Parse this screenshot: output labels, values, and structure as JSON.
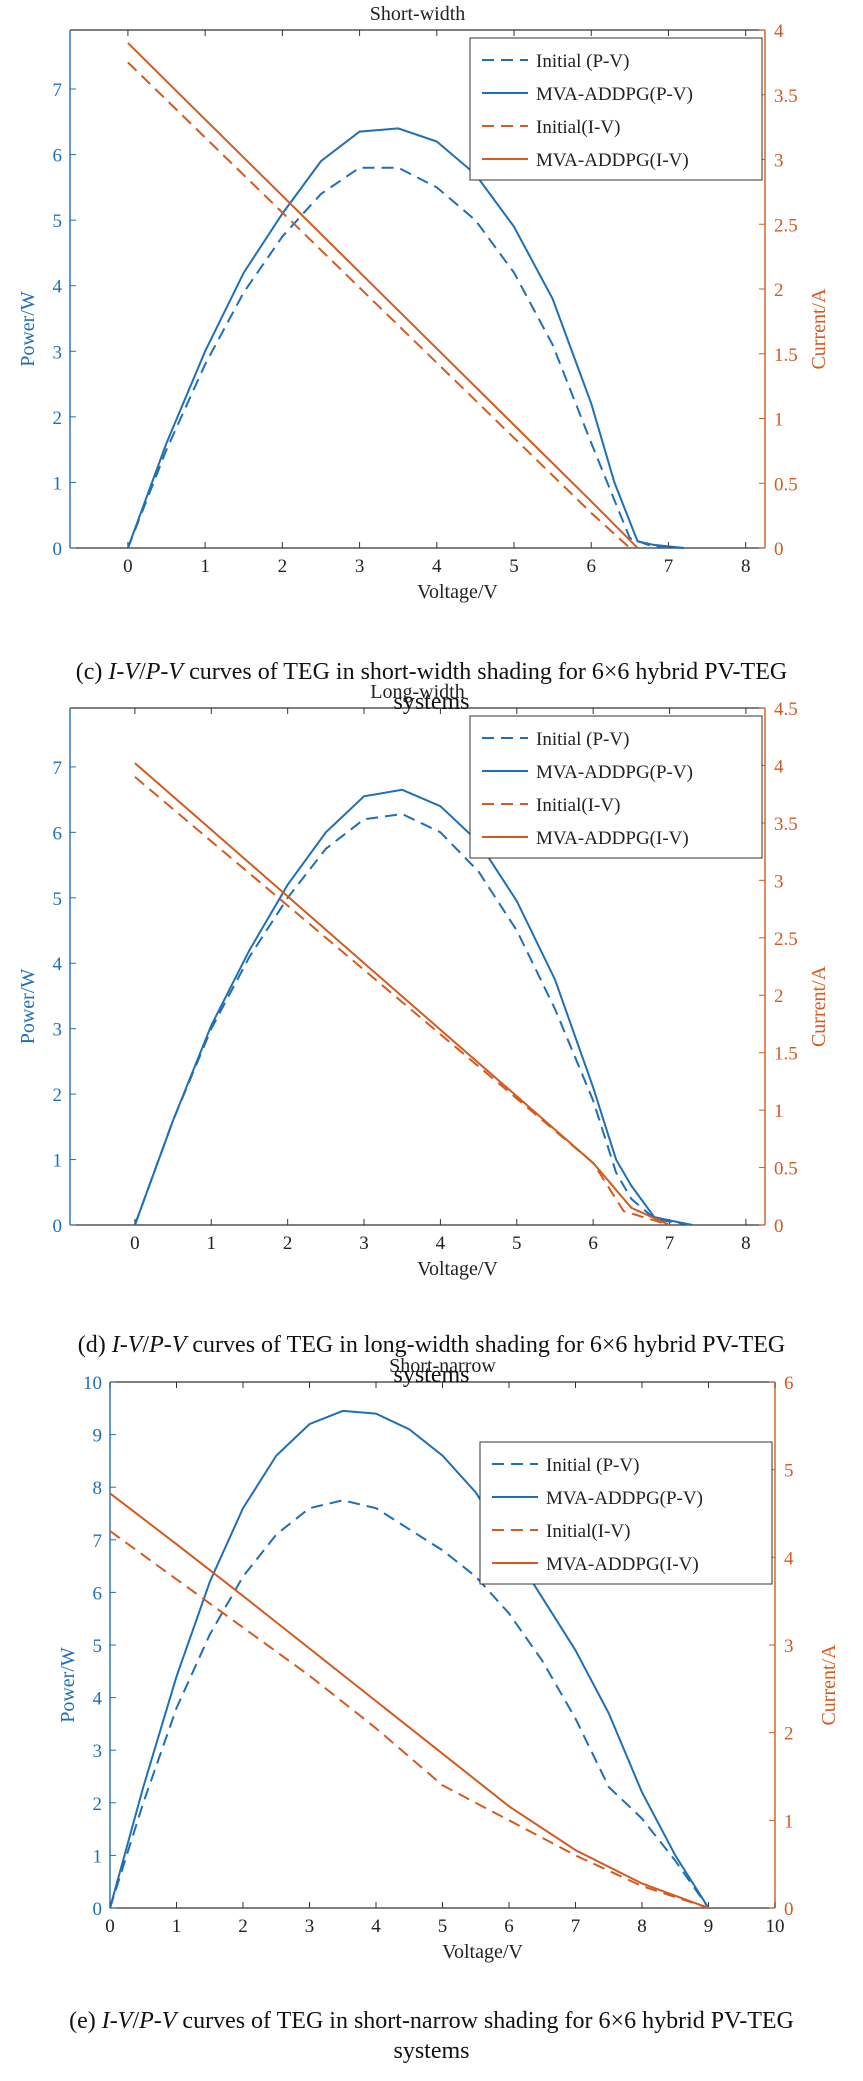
{
  "chart_data": [
    {
      "id": "c",
      "type": "line",
      "title": "Short-width",
      "xlabel": "Voltage/V",
      "ylabel_left": "Power/W",
      "ylabel_right": "Current/A",
      "xlim": [
        -0.75,
        8.25
      ],
      "x_ticks": [
        0,
        1,
        2,
        3,
        4,
        5,
        6,
        7,
        8
      ],
      "ylim_left": [
        0,
        7.9
      ],
      "y_ticks_left": [
        0,
        1,
        2,
        3,
        4,
        5,
        6,
        7
      ],
      "ylim_right": [
        0,
        4
      ],
      "y_ticks_right": [
        0,
        0.5,
        1,
        1.5,
        2,
        2.5,
        3,
        3.5,
        4
      ],
      "legend_position": "top-right",
      "series": [
        {
          "name": "Initial (P-V)",
          "axis": "left",
          "color": "#1f6fb5",
          "dash": true,
          "x": [
            0,
            0.5,
            1,
            1.5,
            2,
            2.5,
            3,
            3.5,
            4,
            4.5,
            5,
            5.5,
            6,
            6.5,
            6.8,
            7.2
          ],
          "y": [
            0,
            1.5,
            2.8,
            3.9,
            4.75,
            5.4,
            5.8,
            5.8,
            5.5,
            5.0,
            4.2,
            3.1,
            1.6,
            0.15,
            0.02,
            0
          ]
        },
        {
          "name": "MVA-ADDPG(P-V)",
          "axis": "left",
          "color": "#1f6fb5",
          "dash": false,
          "x": [
            0,
            0.5,
            1,
            1.5,
            2,
            2.5,
            3,
            3.5,
            4,
            4.5,
            5,
            5.5,
            6,
            6.3,
            6.6,
            6.8,
            7.2
          ],
          "y": [
            0,
            1.6,
            3.0,
            4.2,
            5.1,
            5.9,
            6.35,
            6.4,
            6.2,
            5.7,
            4.9,
            3.8,
            2.2,
            1.0,
            0.1,
            0.05,
            0
          ]
        },
        {
          "name": "Initial(I-V)",
          "axis": "right",
          "color": "#d45a1f",
          "dash": true,
          "x": [
            0,
            1,
            2,
            3,
            4,
            5,
            6,
            6.5
          ],
          "y": [
            3.75,
            3.17,
            2.59,
            2.01,
            1.43,
            0.85,
            0.27,
            0
          ]
        },
        {
          "name": "MVA-ADDPG(I-V)",
          "axis": "right",
          "color": "#d45a1f",
          "dash": false,
          "x": [
            0,
            1,
            2,
            3,
            4,
            5,
            6,
            6.6
          ],
          "y": [
            3.9,
            3.31,
            2.72,
            2.13,
            1.54,
            0.95,
            0.36,
            0
          ]
        }
      ]
    },
    {
      "id": "d",
      "type": "line",
      "title": "Long-width",
      "xlabel": "Voltage/V",
      "ylabel_left": "Power/W",
      "ylabel_right": "Current/A",
      "xlim": [
        -0.85,
        8.25
      ],
      "x_ticks": [
        0,
        1,
        2,
        3,
        4,
        5,
        6,
        7,
        8
      ],
      "ylim_left": [
        0,
        7.9
      ],
      "y_ticks_left": [
        0,
        1,
        2,
        3,
        4,
        5,
        6,
        7
      ],
      "ylim_right": [
        0,
        4.5
      ],
      "y_ticks_right": [
        0,
        0.5,
        1,
        1.5,
        2,
        2.5,
        3,
        3.5,
        4,
        4.5
      ],
      "legend_position": "top-right",
      "series": [
        {
          "name": "Initial (P-V)",
          "axis": "left",
          "color": "#1f6fb5",
          "dash": true,
          "x": [
            0,
            0.5,
            1,
            1.5,
            2,
            2.5,
            3,
            3.5,
            4,
            4.5,
            5,
            5.5,
            6,
            6.3,
            6.5,
            6.8,
            7.0,
            7.3
          ],
          "y": [
            0,
            1.6,
            3.0,
            4.1,
            5.0,
            5.75,
            6.2,
            6.28,
            6.0,
            5.4,
            4.5,
            3.3,
            1.9,
            0.8,
            0.4,
            0.1,
            0.05,
            0
          ]
        },
        {
          "name": "MVA-ADDPG(P-V)",
          "axis": "left",
          "color": "#1f6fb5",
          "dash": false,
          "x": [
            0,
            0.5,
            1,
            1.5,
            2,
            2.5,
            3,
            3.5,
            4,
            4.5,
            5,
            5.5,
            6,
            6.3,
            6.5,
            6.8,
            7.0,
            7.3
          ],
          "y": [
            0,
            1.6,
            3.05,
            4.2,
            5.2,
            6.0,
            6.55,
            6.65,
            6.4,
            5.85,
            4.95,
            3.75,
            2.1,
            1.0,
            0.6,
            0.12,
            0.07,
            0
          ]
        },
        {
          "name": "Initial(I-V)",
          "axis": "right",
          "color": "#d45a1f",
          "dash": true,
          "x": [
            0,
            1,
            2,
            3,
            4,
            5,
            6,
            6.4,
            7.0
          ],
          "y": [
            3.9,
            3.34,
            2.78,
            2.22,
            1.66,
            1.1,
            0.54,
            0.12,
            0
          ]
        },
        {
          "name": "MVA-ADDPG(I-V)",
          "axis": "right",
          "color": "#d45a1f",
          "dash": false,
          "x": [
            0,
            1,
            2,
            3,
            4,
            5,
            6,
            6.5,
            7.0
          ],
          "y": [
            4.02,
            3.44,
            2.86,
            2.28,
            1.7,
            1.12,
            0.54,
            0.15,
            0
          ]
        }
      ]
    },
    {
      "id": "e",
      "type": "line",
      "title": "Short-narrow",
      "xlabel": "Voltage/V",
      "ylabel_left": "Power/W",
      "ylabel_right": "Current/A",
      "xlim": [
        0,
        10
      ],
      "x_ticks": [
        0,
        1,
        2,
        3,
        4,
        5,
        6,
        7,
        8,
        9,
        10
      ],
      "ylim_left": [
        0,
        10
      ],
      "y_ticks_left": [
        0,
        1,
        2,
        3,
        4,
        5,
        6,
        7,
        8,
        9,
        10
      ],
      "ylim_right": [
        0,
        6
      ],
      "y_ticks_right": [
        0,
        1,
        2,
        3,
        4,
        5,
        6
      ],
      "legend_position": "top-right",
      "series": [
        {
          "name": "Initial (P-V)",
          "axis": "left",
          "color": "#1f6fb5",
          "dash": true,
          "x": [
            0,
            0.5,
            1,
            1.5,
            2,
            2.5,
            3,
            3.5,
            4,
            4.5,
            5,
            5.5,
            6,
            6.5,
            7,
            7.5,
            8,
            8.5,
            9.0
          ],
          "y": [
            0,
            2.0,
            3.8,
            5.2,
            6.3,
            7.1,
            7.6,
            7.75,
            7.6,
            7.2,
            6.8,
            6.3,
            5.6,
            4.7,
            3.6,
            2.3,
            1.7,
            0.9,
            0
          ]
        },
        {
          "name": "MVA-ADDPG(P-V)",
          "axis": "left",
          "color": "#1f6fb5",
          "dash": false,
          "x": [
            0,
            0.5,
            1,
            1.5,
            2,
            2.5,
            3,
            3.5,
            4,
            4.5,
            5,
            5.5,
            6,
            6.5,
            7,
            7.5,
            8,
            8.5,
            9.0
          ],
          "y": [
            0,
            2.3,
            4.4,
            6.2,
            7.6,
            8.6,
            9.2,
            9.45,
            9.4,
            9.1,
            8.6,
            7.9,
            6.9,
            5.9,
            4.9,
            3.7,
            2.2,
            1.0,
            0
          ]
        },
        {
          "name": "Initial(I-V)",
          "axis": "right",
          "color": "#d45a1f",
          "dash": true,
          "x": [
            0,
            1,
            2,
            3,
            4,
            5,
            6,
            7,
            8,
            9.0
          ],
          "y": [
            4.3,
            3.75,
            3.2,
            2.65,
            2.05,
            1.4,
            1.0,
            0.6,
            0.25,
            0
          ]
        },
        {
          "name": "MVA-ADDPG(I-V)",
          "axis": "right",
          "color": "#d45a1f",
          "dash": false,
          "x": [
            0,
            1,
            2,
            3,
            4,
            5,
            6,
            7,
            8,
            9.0
          ],
          "y": [
            4.73,
            4.15,
            3.56,
            2.96,
            2.36,
            1.76,
            1.16,
            0.66,
            0.28,
            0
          ]
        }
      ]
    }
  ],
  "captions": [
    {
      "id": "c",
      "lead": "(c) ",
      "italic": "I-V",
      "slash": "/",
      "italic2": "P-V",
      "rest": " curves of TEG in short-width shading for 6×6 hybrid PV-TEG",
      "line2": "systems"
    },
    {
      "id": "d",
      "lead": "(d) ",
      "italic": "I-V",
      "slash": "/",
      "italic2": "P-V",
      "rest": " curves of TEG in long-width shading for 6×6 hybrid PV-TEG",
      "line2": "systems"
    },
    {
      "id": "e",
      "lead": "(e) ",
      "italic": "I-V",
      "slash": "/",
      "italic2": "P-V",
      "rest": " curves of TEG in short-narrow shading for 6×6 hybrid PV-TEG",
      "line2": "systems"
    }
  ],
  "colors": {
    "blue": "#1f6fb5",
    "orange": "#d45a1f",
    "axis": "#333333"
  }
}
